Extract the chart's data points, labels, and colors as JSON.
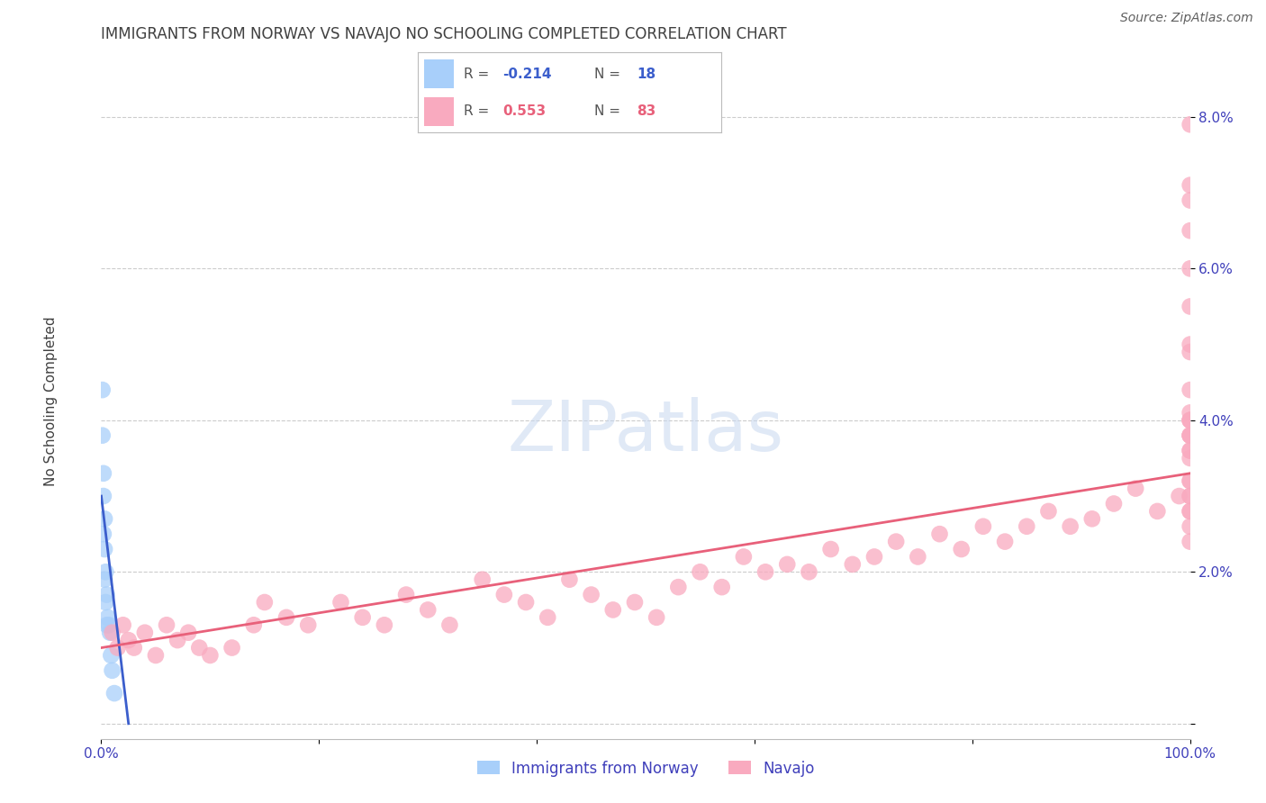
{
  "title": "IMMIGRANTS FROM NORWAY VS NAVAJO NO SCHOOLING COMPLETED CORRELATION CHART",
  "source": "Source: ZipAtlas.com",
  "ylabel": "No Schooling Completed",
  "xlim": [
    0.0,
    1.0
  ],
  "ylim": [
    -0.002,
    0.088
  ],
  "yticks": [
    0.0,
    0.02,
    0.04,
    0.06,
    0.08
  ],
  "ytick_labels": [
    "",
    "2.0%",
    "4.0%",
    "6.0%",
    "8.0%"
  ],
  "xticks": [
    0.0,
    0.2,
    0.4,
    0.6,
    0.8,
    1.0
  ],
  "xtick_labels": [
    "0.0%",
    "",
    "",
    "",
    "",
    "100.0%"
  ],
  "legend_norway_R": "-0.214",
  "legend_norway_N": "18",
  "legend_navajo_R": "0.553",
  "legend_navajo_N": "83",
  "norway_color": "#A8CFFA",
  "navajo_color": "#F9AABF",
  "norway_line_color": "#3B5ECC",
  "navajo_line_color": "#E8607A",
  "background_color": "#FFFFFF",
  "grid_color": "#CCCCCC",
  "title_color": "#404040",
  "axis_label_color": "#4040BB",
  "norway_points_x": [
    0.001,
    0.001,
    0.002,
    0.002,
    0.002,
    0.003,
    0.003,
    0.003,
    0.004,
    0.004,
    0.005,
    0.005,
    0.006,
    0.007,
    0.008,
    0.009,
    0.01,
    0.012
  ],
  "norway_points_y": [
    0.044,
    0.038,
    0.033,
    0.03,
    0.025,
    0.027,
    0.023,
    0.019,
    0.02,
    0.016,
    0.017,
    0.013,
    0.014,
    0.013,
    0.012,
    0.009,
    0.007,
    0.004
  ],
  "norway_line_x": [
    0.0,
    0.025
  ],
  "norway_line_y": [
    0.03,
    0.0
  ],
  "navajo_points_x": [
    0.01,
    0.015,
    0.02,
    0.025,
    0.03,
    0.04,
    0.05,
    0.06,
    0.07,
    0.08,
    0.09,
    0.1,
    0.12,
    0.14,
    0.15,
    0.17,
    0.19,
    0.22,
    0.24,
    0.26,
    0.28,
    0.3,
    0.32,
    0.35,
    0.37,
    0.39,
    0.41,
    0.43,
    0.45,
    0.47,
    0.49,
    0.51,
    0.53,
    0.55,
    0.57,
    0.59,
    0.61,
    0.63,
    0.65,
    0.67,
    0.69,
    0.71,
    0.73,
    0.75,
    0.77,
    0.79,
    0.81,
    0.83,
    0.85,
    0.87,
    0.89,
    0.91,
    0.93,
    0.95,
    0.97,
    0.99,
    1.0,
    1.0,
    1.0,
    1.0,
    1.0,
    1.0,
    1.0,
    1.0,
    1.0,
    1.0,
    1.0,
    1.0,
    1.0,
    1.0,
    1.0,
    1.0,
    1.0,
    1.0,
    1.0,
    1.0,
    1.0,
    1.0,
    1.0,
    1.0,
    1.0,
    1.0,
    1.0
  ],
  "navajo_points_y": [
    0.012,
    0.01,
    0.013,
    0.011,
    0.01,
    0.012,
    0.009,
    0.013,
    0.011,
    0.012,
    0.01,
    0.009,
    0.01,
    0.013,
    0.016,
    0.014,
    0.013,
    0.016,
    0.014,
    0.013,
    0.017,
    0.015,
    0.013,
    0.019,
    0.017,
    0.016,
    0.014,
    0.019,
    0.017,
    0.015,
    0.016,
    0.014,
    0.018,
    0.02,
    0.018,
    0.022,
    0.02,
    0.021,
    0.02,
    0.023,
    0.021,
    0.022,
    0.024,
    0.022,
    0.025,
    0.023,
    0.026,
    0.024,
    0.026,
    0.028,
    0.026,
    0.027,
    0.029,
    0.031,
    0.028,
    0.03,
    0.04,
    0.038,
    0.036,
    0.041,
    0.032,
    0.038,
    0.04,
    0.028,
    0.03,
    0.026,
    0.03,
    0.035,
    0.038,
    0.024,
    0.032,
    0.036,
    0.028,
    0.05,
    0.055,
    0.044,
    0.049,
    0.04,
    0.06,
    0.065,
    0.069,
    0.071,
    0.079
  ],
  "navajo_line_x": [
    0.0,
    1.0
  ],
  "navajo_line_y": [
    0.01,
    0.033
  ],
  "watermark_text": "ZIPatlas",
  "watermark_color": "#C8D8F0"
}
